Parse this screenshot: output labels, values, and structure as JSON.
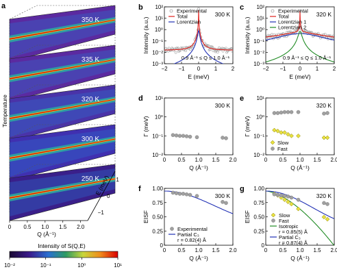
{
  "colors": {
    "experimental": "#a0a0a0",
    "total": "#e0201c",
    "lorentzian": "#1f2fb4",
    "lorentzian2": "#1e8a22",
    "isotropic": "#1e8a22",
    "partial": "#1f2fb4",
    "slow": "#e8e040",
    "fast": "#a0a0a0",
    "heatmap_low": "#1a0a33",
    "heatmap_mid": "#2f9b63",
    "heatmap_high": "#d90000"
  },
  "panel_a": {
    "label": "a",
    "temperatures": [
      "350 K",
      "335 K",
      "320 K",
      "300 K",
      "250 K"
    ],
    "ylabel": "Temperature",
    "q_ticks": [
      "0",
      "0.5",
      "1.0",
      "1.5",
      "2.0"
    ],
    "q_label": "Q (Å⁻¹)",
    "e_ticks": [
      "−1",
      "0",
      "1"
    ],
    "e_label": "E (meV)",
    "colorbar": {
      "title": "Intensity of S(Q,E)",
      "ticks": [
        "10⁻²",
        "10⁻¹",
        "10⁰",
        "10¹"
      ],
      "scale": "log"
    }
  },
  "chart_data": [
    {
      "panel": "b",
      "type": "line",
      "temperature": "300 K",
      "xlabel": "E (meV)",
      "ylabel": "Intensity (a.u.)",
      "xlim": [
        -2,
        2
      ],
      "ylim_log": [
        -3,
        2
      ],
      "yscale": "log",
      "xticks": [
        "−2",
        "−1",
        "0",
        "1",
        "2"
      ],
      "yticks": [
        "10⁻³",
        "10⁻²",
        "10⁻¹",
        "10⁰",
        "10¹",
        "10²"
      ],
      "annotation": "0.9 Å⁻¹ ≤ Q ≤ 1.0 Å⁻¹",
      "legend": [
        "Experimental",
        "Total",
        "Lorentzian"
      ],
      "series": [
        {
          "name": "Experimental",
          "baseline": 0.015,
          "peak": 50,
          "width": 0.006
        },
        {
          "name": "Total",
          "baseline": 0.015,
          "peak": 50,
          "width": 0.006
        },
        {
          "name": "Lorentzian",
          "peak": 0.8,
          "width": 0.05
        }
      ]
    },
    {
      "panel": "c",
      "type": "line",
      "temperature": "320 K",
      "xlabel": "E (meV)",
      "ylabel": "Intensity (a.u.)",
      "xlim": [
        -2,
        2
      ],
      "ylim_log": [
        -3,
        2
      ],
      "yscale": "log",
      "xticks": [
        "−2",
        "−1",
        "0",
        "1",
        "2"
      ],
      "yticks": [
        "10⁻³",
        "10⁻²",
        "10⁻¹",
        "10⁰",
        "10¹",
        "10²"
      ],
      "annotation": "0.9 Å⁻¹ ≤ Q ≤ 1.0 Å⁻¹",
      "legend": [
        "Experimental",
        "Total",
        "Lorentzian 1",
        "Lorentzian 2"
      ],
      "series": [
        {
          "name": "Experimental",
          "baseline": 0.1,
          "peak": 40,
          "width": 0.006
        },
        {
          "name": "Total",
          "baseline": 0.1,
          "peak": 40,
          "width": 0.006
        },
        {
          "name": "Lorentzian 1",
          "peak": 0.45,
          "width": 1.2
        },
        {
          "name": "Lorentzian 2",
          "peak": 0.7,
          "width": 0.09
        }
      ]
    },
    {
      "panel": "d",
      "type": "scatter",
      "temperature": "300 K",
      "xlabel": "Q (Å⁻¹)",
      "ylabel": "Γ (meV)",
      "xlim": [
        0,
        2
      ],
      "ylim_log": [
        -2,
        1
      ],
      "yscale": "log",
      "xticks": [
        "0",
        "0.5",
        "1.0",
        "1.5",
        "2.0"
      ],
      "yticks": [
        "10⁻²",
        "10⁻¹",
        "10⁰",
        "10¹"
      ],
      "series": [
        {
          "name": "Fast",
          "x": [
            0.25,
            0.35,
            0.45,
            0.55,
            0.65,
            0.75,
            0.95,
            1.7,
            1.8
          ],
          "y": [
            0.11,
            0.105,
            0.1,
            0.1,
            0.095,
            0.09,
            0.085,
            0.08,
            0.075
          ]
        }
      ]
    },
    {
      "panel": "e",
      "type": "scatter",
      "temperature": "320 K",
      "xlabel": "Q (Å⁻¹)",
      "ylabel": "Γ (meV)",
      "xlim": [
        0,
        2
      ],
      "ylim_log": [
        -2,
        1
      ],
      "yscale": "log",
      "xticks": [
        "0",
        "0.5",
        "1.0",
        "1.5",
        "2.0"
      ],
      "yticks": [
        "10⁻²",
        "10⁻¹",
        "10⁰",
        "10¹"
      ],
      "legend": [
        "Slow",
        "Fast"
      ],
      "series": [
        {
          "name": "Fast",
          "marker": "circle",
          "x": [
            0.25,
            0.35,
            0.45,
            0.55,
            0.65,
            0.75,
            0.95,
            1.7,
            1.8
          ],
          "y": [
            1.6,
            1.6,
            1.7,
            1.8,
            1.8,
            1.8,
            1.8,
            1.5,
            1.6
          ]
        },
        {
          "name": "Slow",
          "marker": "diamond",
          "x": [
            0.25,
            0.35,
            0.45,
            0.55,
            0.65,
            0.75,
            0.95,
            1.7,
            1.8
          ],
          "y": [
            0.2,
            0.18,
            0.15,
            0.15,
            0.12,
            0.1,
            0.1,
            0.08,
            0.08
          ]
        }
      ]
    },
    {
      "panel": "f",
      "type": "scatter",
      "temperature": "300 K",
      "xlabel": "Q (Å⁻¹)",
      "ylabel": "EISF",
      "xlim": [
        0,
        2
      ],
      "ylim": [
        0,
        1.05
      ],
      "xticks": [
        "0",
        "0.5",
        "1.0",
        "1.5",
        "2.0"
      ],
      "yticks": [
        "0",
        "0.25",
        "0.50",
        "0.75",
        "1.00"
      ],
      "legend": [
        "Experimental",
        "Partial C₃"
      ],
      "legend_note": "r = 0.82(4) Å",
      "series": [
        {
          "name": "Experimental",
          "marker": "circle",
          "x": [
            0.25,
            0.35,
            0.45,
            0.55,
            0.65,
            0.75,
            0.95,
            1.7,
            1.8
          ],
          "y": [
            0.97,
            0.96,
            0.95,
            0.95,
            0.94,
            0.93,
            0.91,
            0.8,
            0.78
          ]
        },
        {
          "name": "Partial C₃",
          "type": "line",
          "r": 0.82,
          "f": 0.7
        }
      ]
    },
    {
      "panel": "g",
      "type": "scatter",
      "temperature": "320 K",
      "xlabel": "Q (Å⁻¹)",
      "ylabel": "EISF",
      "xlim": [
        0,
        2
      ],
      "ylim": [
        0,
        1.05
      ],
      "xticks": [
        "0",
        "0.5",
        "1.0",
        "1.5",
        "2.0"
      ],
      "yticks": [
        "0",
        "0.25",
        "0.50",
        "0.75",
        "1.00"
      ],
      "legend": [
        "Slow",
        "Fast",
        "Isotropic",
        "Partial C₃"
      ],
      "legend_notes": [
        "r = 0.85(5) Å",
        "r = 0.87(4) Å"
      ],
      "series": [
        {
          "name": "Slow",
          "marker": "diamond",
          "x": [
            0.25,
            0.35,
            0.45,
            0.55,
            0.65,
            0.75,
            0.95,
            1.7,
            1.8
          ],
          "y": [
            0.95,
            0.92,
            0.88,
            0.84,
            0.8,
            0.76,
            0.67,
            0.52,
            0.48
          ]
        },
        {
          "name": "Fast",
          "marker": "circle",
          "x": [
            0.25,
            0.35,
            0.45,
            0.55,
            0.65,
            0.75,
            0.95,
            1.7,
            1.8
          ],
          "y": [
            0.94,
            0.93,
            0.92,
            0.91,
            0.9,
            0.88,
            0.84,
            0.78,
            0.76
          ]
        },
        {
          "name": "Isotropic",
          "type": "line",
          "r": 0.85
        },
        {
          "name": "Partial C₃",
          "type": "line",
          "r": 0.87,
          "f": 0.8
        }
      ]
    }
  ]
}
